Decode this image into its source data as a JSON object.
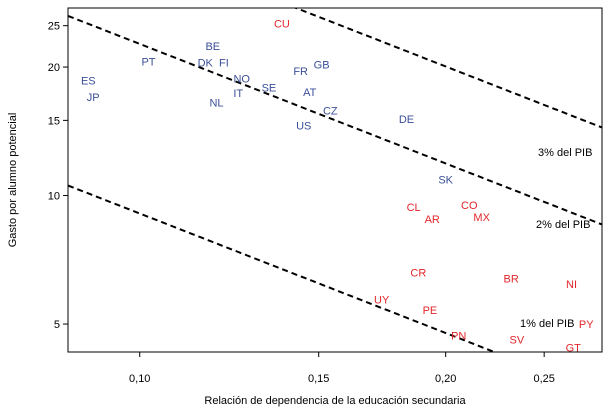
{
  "chart_data": {
    "type": "scatter",
    "title": "",
    "xlabel": "Relación de dependencia de la educación secundaria",
    "ylabel": "Gasto por alumno potencial",
    "x_scale": "log",
    "y_scale": "log",
    "xlim": [
      0.085,
      0.285
    ],
    "ylim": [
      4.3,
      27.5
    ],
    "grid": false,
    "colors": {
      "group_blue": "#3a4f9a",
      "group_red": "#e2262b",
      "lines": "#000000"
    },
    "x_ticks": [
      {
        "value": 0.1,
        "label": "0,10"
      },
      {
        "value": 0.15,
        "label": "0,15"
      },
      {
        "value": 0.2,
        "label": "0,20"
      },
      {
        "value": 0.25,
        "label": "0,25"
      }
    ],
    "y_ticks": [
      {
        "value": 5,
        "label": "5"
      },
      {
        "value": 10,
        "label": "10"
      },
      {
        "value": 15,
        "label": "15"
      },
      {
        "value": 20,
        "label": "20"
      },
      {
        "value": 25,
        "label": "25"
      }
    ],
    "reference_lines": [
      {
        "label": "3% del PIB",
        "pct": 0.03
      },
      {
        "label": "2% del PIB",
        "pct": 0.02
      },
      {
        "label": "1% del PIB",
        "pct": 0.01
      }
    ],
    "series": [
      {
        "color": "#3a4f9a",
        "points": [
          {
            "label": "ES",
            "x": 0.089,
            "y": 18.6
          },
          {
            "label": "JP",
            "x": 0.09,
            "y": 17.0
          },
          {
            "label": "PT",
            "x": 0.102,
            "y": 20.6
          },
          {
            "label": "BE",
            "x": 0.118,
            "y": 22.4
          },
          {
            "label": "DK",
            "x": 0.116,
            "y": 20.5
          },
          {
            "label": "FI",
            "x": 0.121,
            "y": 20.5
          },
          {
            "label": "NO",
            "x": 0.126,
            "y": 18.8
          },
          {
            "label": "IT",
            "x": 0.125,
            "y": 17.4
          },
          {
            "label": "NL",
            "x": 0.119,
            "y": 16.5
          },
          {
            "label": "SE",
            "x": 0.134,
            "y": 17.9
          },
          {
            "label": "FR",
            "x": 0.144,
            "y": 19.6
          },
          {
            "label": "GB",
            "x": 0.151,
            "y": 20.3
          },
          {
            "label": "AT",
            "x": 0.147,
            "y": 17.5
          },
          {
            "label": "CZ",
            "x": 0.154,
            "y": 15.8
          },
          {
            "label": "US",
            "x": 0.145,
            "y": 14.6
          },
          {
            "label": "DE",
            "x": 0.183,
            "y": 15.1
          },
          {
            "label": "SK",
            "x": 0.2,
            "y": 10.9
          }
        ]
      },
      {
        "color": "#e2262b",
        "points": [
          {
            "label": "CU",
            "x": 0.138,
            "y": 25.3
          },
          {
            "label": "CL",
            "x": 0.186,
            "y": 9.4
          },
          {
            "label": "AR",
            "x": 0.194,
            "y": 8.8
          },
          {
            "label": "CO",
            "x": 0.211,
            "y": 9.5
          },
          {
            "label": "MX",
            "x": 0.217,
            "y": 8.9
          },
          {
            "label": "CR",
            "x": 0.188,
            "y": 6.6
          },
          {
            "label": "BR",
            "x": 0.232,
            "y": 6.4
          },
          {
            "label": "NI",
            "x": 0.266,
            "y": 6.2
          },
          {
            "label": "UY",
            "x": 0.173,
            "y": 5.7
          },
          {
            "label": "PE",
            "x": 0.193,
            "y": 5.4
          },
          {
            "label": "PY",
            "x": 0.275,
            "y": 5.0
          },
          {
            "label": "PN",
            "x": 0.206,
            "y": 4.7
          },
          {
            "label": "SV",
            "x": 0.235,
            "y": 4.6
          },
          {
            "label": "GT",
            "x": 0.267,
            "y": 4.4
          }
        ]
      }
    ]
  }
}
